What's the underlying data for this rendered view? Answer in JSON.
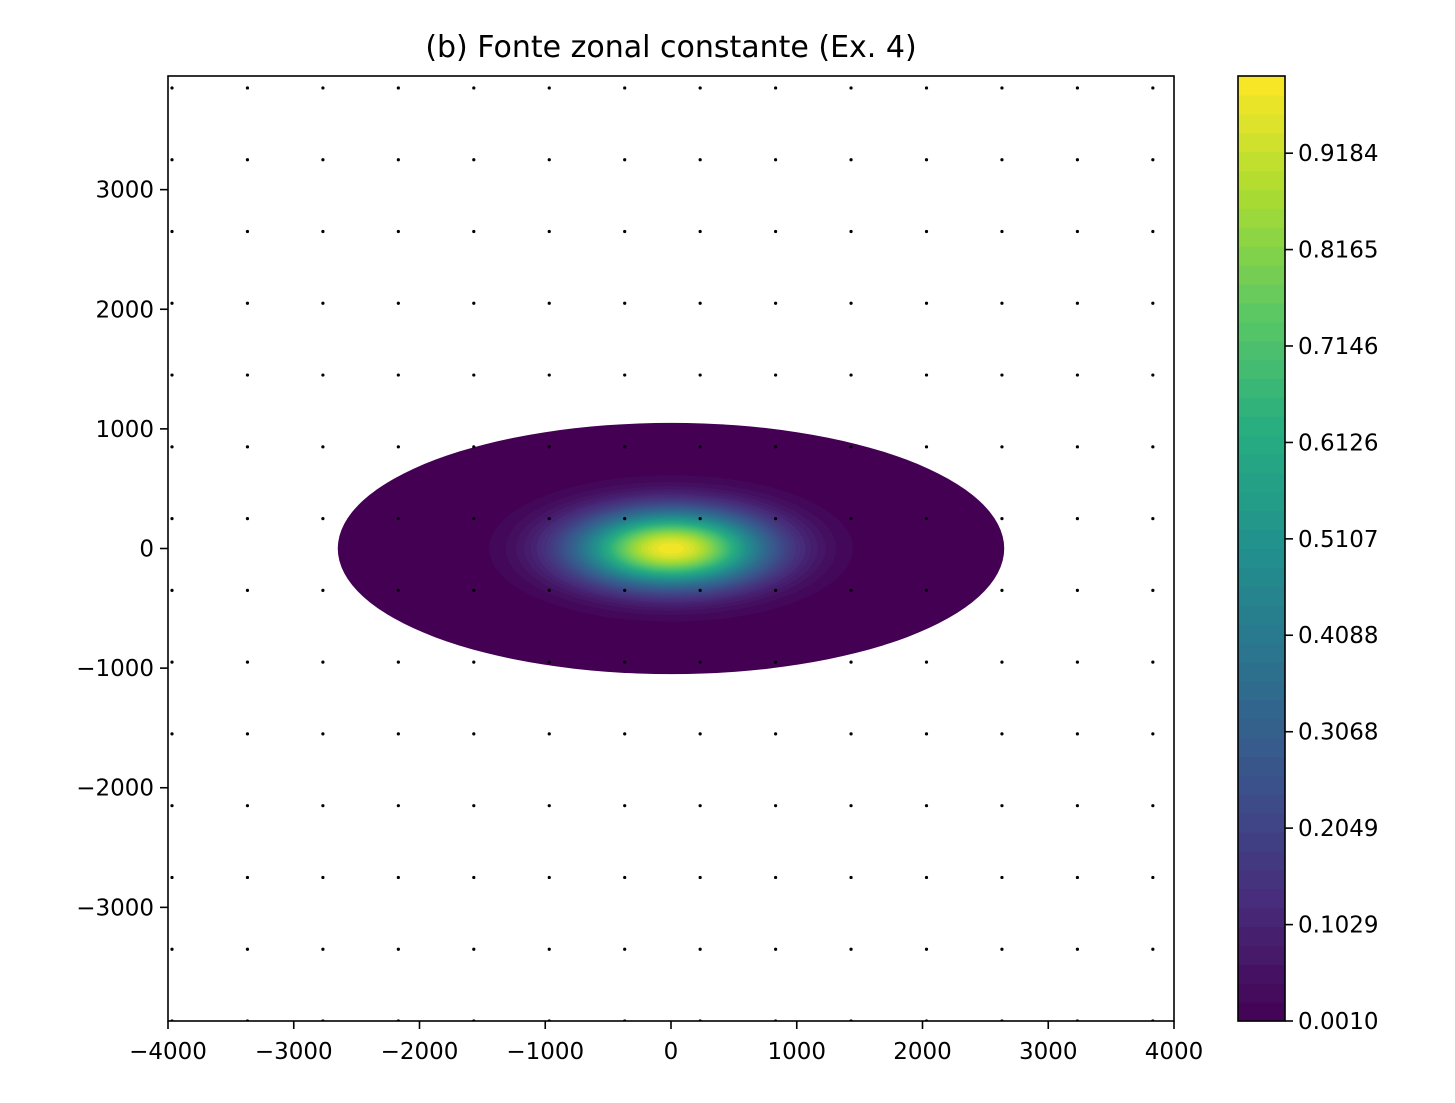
{
  "chart_data": {
    "type": "heatmap",
    "subtype": "filled-contour",
    "title": "(b) Fonte zonal constante (Ex. 4)",
    "xlabel": "",
    "ylabel": "",
    "xlim": [
      -4000,
      4000
    ],
    "ylim": [
      -3950,
      3950
    ],
    "xticks": [
      -4000,
      -3000,
      -2000,
      -1000,
      0,
      1000,
      2000,
      3000,
      4000
    ],
    "xtick_labels": [
      "−4000",
      "−3000",
      "−2000",
      "−1000",
      "0",
      "1000",
      "2000",
      "3000",
      "4000"
    ],
    "yticks": [
      -3000,
      -2000,
      -1000,
      0,
      1000,
      2000,
      3000
    ],
    "ytick_labels": [
      "−3000",
      "−2000",
      "−1000",
      "0",
      "1000",
      "2000",
      "3000"
    ],
    "colormap": "viridis",
    "colorbar": {
      "range": [
        0.001,
        1.0
      ],
      "ticks": [
        0.001,
        0.1029,
        0.2049,
        0.3068,
        0.4088,
        0.5107,
        0.6126,
        0.7146,
        0.8165,
        0.9184
      ],
      "tick_labels": [
        "0.0010",
        "0.1029",
        "0.2049",
        "0.3068",
        "0.4088",
        "0.5107",
        "0.6126",
        "0.7146",
        "0.8165",
        "0.9184"
      ],
      "levels": 50
    },
    "field": {
      "center": [
        0,
        0
      ],
      "outer_boundary_semi_axes": [
        2650,
        1050
      ],
      "peak_value": 1.0,
      "min_value": 0.001,
      "core_sigma": [
        520,
        220
      ]
    },
    "marker_grid": {
      "x": [
        -4000,
        -3400,
        -2800,
        -2200,
        -1600,
        -1000,
        -400,
        200,
        800,
        1400,
        2000,
        2600,
        3200,
        3800
      ],
      "y": [
        3850,
        3250,
        2650,
        2050,
        1450,
        850,
        250,
        -350,
        -950,
        -1550,
        -2150,
        -2750,
        -3350,
        -3950
      ],
      "markers_per_row": 14
    }
  }
}
